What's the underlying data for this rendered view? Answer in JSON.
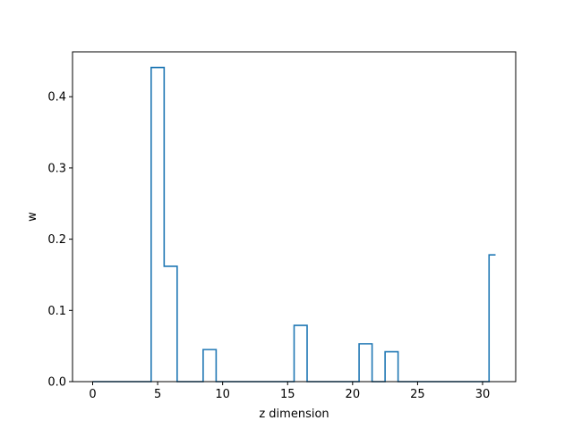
{
  "chart_data": {
    "type": "line",
    "drawstyle": "steps-mid",
    "xlabel": "z dimension",
    "ylabel": "w",
    "xlim": [
      -1.55,
      32.55
    ],
    "ylim": [
      0,
      0.463
    ],
    "xticks": [
      0,
      5,
      10,
      15,
      20,
      25,
      30
    ],
    "yticks": [
      0.0,
      0.1,
      0.2,
      0.3,
      0.4
    ],
    "ytick_labels": [
      "0.0",
      "0.1",
      "0.2",
      "0.3",
      "0.4"
    ],
    "grid": false,
    "series": [
      {
        "color": "#1f77b4",
        "x": [
          0,
          1,
          2,
          3,
          4,
          5,
          6,
          7,
          8,
          9,
          10,
          11,
          12,
          13,
          14,
          15,
          16,
          17,
          18,
          19,
          20,
          21,
          22,
          23,
          24,
          25,
          26,
          27,
          28,
          29,
          30,
          31
        ],
        "y": [
          0,
          0,
          0,
          0,
          0,
          0.441,
          0.162,
          0,
          0,
          0.045,
          0,
          0,
          0,
          0,
          0,
          0,
          0.079,
          0,
          0,
          0,
          0,
          0.053,
          0,
          0.042,
          0,
          0,
          0,
          0,
          0,
          0,
          0,
          0.178
        ]
      }
    ]
  }
}
